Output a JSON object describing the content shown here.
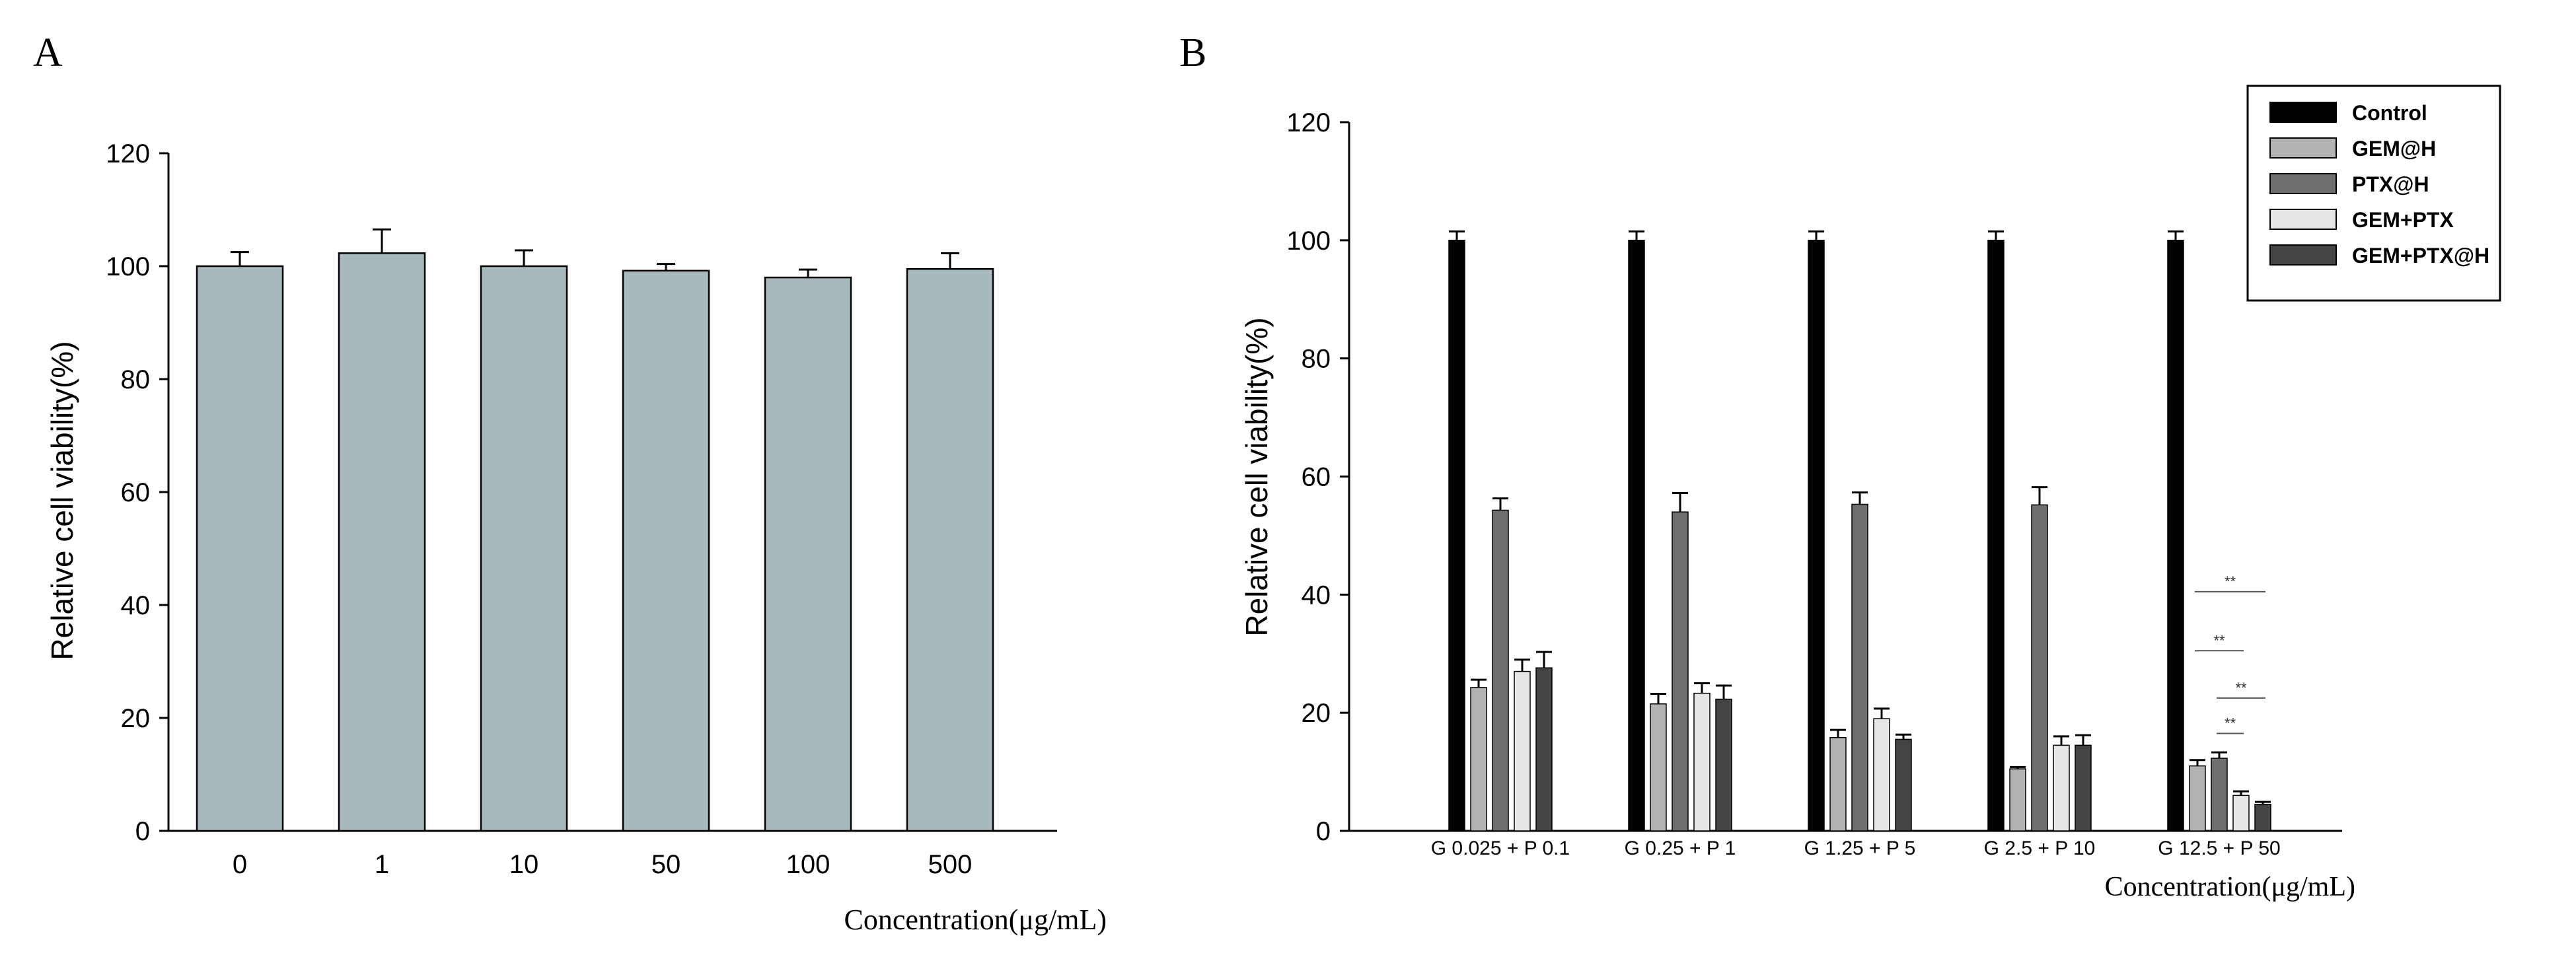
{
  "chart_data": [
    {
      "type": "bar",
      "panel_label": "A",
      "title": "",
      "xlabel": "Concentration(μg/mL)",
      "ylabel": "Relative cell viability(%)",
      "ylim": [
        0,
        120
      ],
      "yticks": [
        0,
        20,
        40,
        60,
        80,
        100,
        120
      ],
      "categories": [
        "0",
        "1",
        "10",
        "50",
        "100",
        "500"
      ],
      "values": [
        100,
        102.3,
        100,
        99.2,
        98,
        99.5
      ],
      "errors": [
        2.5,
        4.2,
        2.8,
        1.2,
        1.4,
        2.8
      ],
      "bar_color": "#a7b9bd"
    },
    {
      "type": "bar",
      "panel_label": "B",
      "title": "",
      "xlabel": "Concentration(μg/mL)",
      "ylabel": "Relative cell viability(%)",
      "ylim": [
        0,
        120
      ],
      "yticks": [
        0,
        20,
        40,
        60,
        80,
        100,
        120
      ],
      "categories": [
        "G 0.025 + P 0.1",
        "G 0.25 + P 1",
        "G 1.25 + P 5",
        "G 2.5 + P 10",
        "G 12.5 + P 50"
      ],
      "series": [
        {
          "name": "Control",
          "color": "#000000",
          "values": [
            100,
            100,
            100,
            100,
            100
          ],
          "errors": [
            1.5,
            1.5,
            1.5,
            1.5,
            1.5
          ]
        },
        {
          "name": "GEM@H",
          "color": "#b2b2b2",
          "values": [
            24.3,
            21.5,
            15.8,
            10.5,
            11
          ],
          "errors": [
            1.3,
            1.7,
            1.3,
            0.3,
            1
          ]
        },
        {
          "name": "PTX@H",
          "color": "#6e6e6e",
          "values": [
            54.3,
            54,
            55.3,
            55.2,
            12.3
          ],
          "errors": [
            2,
            3.2,
            2,
            3,
            1
          ]
        },
        {
          "name": "GEM+PTX",
          "color": "#e6e6e6",
          "values": [
            27,
            23.3,
            19,
            14.5,
            6
          ],
          "errors": [
            2,
            1.7,
            1.7,
            1.5,
            0.7
          ]
        },
        {
          "name": "GEM+PTX@H",
          "color": "#444444",
          "values": [
            27.6,
            22.3,
            15.5,
            14.5,
            4.5
          ],
          "errors": [
            2.7,
            2.3,
            0.8,
            1.7,
            0.4
          ]
        }
      ],
      "legend_position": "top-right",
      "annotations": [
        {
          "text": "**",
          "compare": [
            "GEM@H",
            "GEM+PTX@H"
          ],
          "category": "G 12.5 + P 50"
        },
        {
          "text": "**",
          "compare": [
            "GEM@H",
            "GEM+PTX"
          ],
          "category": "G 12.5 + P 50"
        },
        {
          "text": "**",
          "compare": [
            "PTX@H",
            "GEM+PTX@H"
          ],
          "category": "G 12.5 + P 50"
        },
        {
          "text": "**",
          "compare": [
            "PTX@H",
            "GEM+PTX"
          ],
          "category": "G 12.5 + P 50"
        }
      ]
    }
  ]
}
